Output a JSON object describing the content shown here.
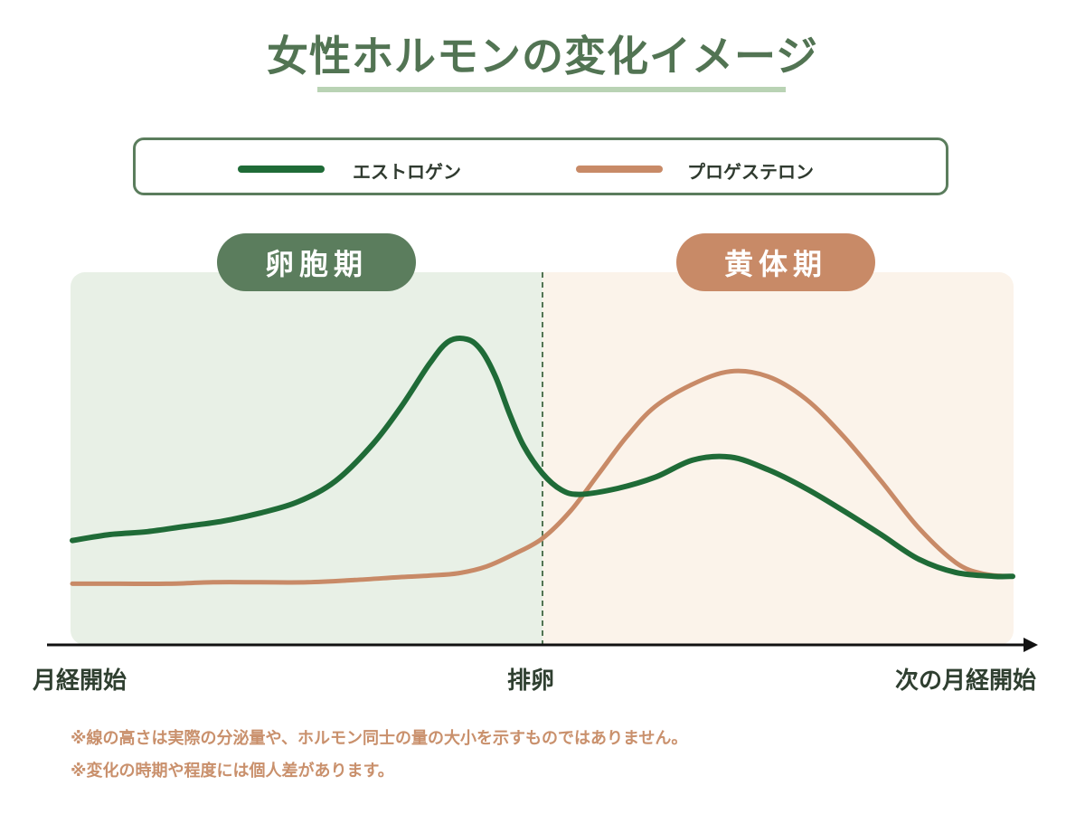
{
  "title": "女性ホルモンの変化イメージ",
  "colors": {
    "title": "#527453",
    "estrogen": "#1f6b37",
    "progesterone": "#c88a67",
    "follicular_bg": "#e8f0e6",
    "luteal_bg": "#fbf3ea",
    "follicular_pill": "#5b7d5d",
    "luteal_pill": "#c88a67",
    "note": "#c9906c"
  },
  "legend": {
    "estrogen_label": "エストロゲン",
    "progesterone_label": "プロゲステロン"
  },
  "phases": {
    "follicular": "卵胞期",
    "luteal": "黄体期"
  },
  "x_labels": {
    "start": "月経開始",
    "ovulation": "排卵",
    "end": "次の月経開始"
  },
  "notes": [
    "※線の高さは実際の分泌量や、ホルモン同士の量の大小を示すものではありません。",
    "※変化の時期や程度には個人差があります。"
  ],
  "chart_data": {
    "type": "line",
    "title": "女性ホルモンの変化イメージ",
    "xlabel": "",
    "ylabel": "",
    "xlim": [
      0,
      100
    ],
    "ylim": [
      0,
      100
    ],
    "x_ticks": [
      {
        "x": 0,
        "label": "月経開始"
      },
      {
        "x": 50,
        "label": "排卵"
      },
      {
        "x": 100,
        "label": "次の月経開始"
      }
    ],
    "grid": false,
    "legend": "top",
    "series": [
      {
        "name": "エストロゲン",
        "x": [
          0,
          4,
          8,
          12,
          16,
          20,
          24,
          28,
          32,
          35,
          38,
          40,
          42,
          43.5,
          45,
          46.5,
          48,
          50,
          52,
          54,
          58,
          62,
          66,
          70,
          74,
          78,
          82,
          86,
          90,
          94,
          98,
          100
        ],
        "y": [
          28,
          29.6,
          30.4,
          31.8,
          33.2,
          35.4,
          38.4,
          44,
          54,
          64,
          75.5,
          81.4,
          82,
          79,
          72,
          62,
          53.4,
          46,
          41.6,
          40.4,
          42,
          45,
          49.6,
          50.4,
          47,
          42,
          36,
          29.6,
          23,
          19.4,
          18.4,
          18.4
        ]
      },
      {
        "name": "プロゲステロン",
        "x": [
          0,
          5,
          10,
          15,
          20,
          25,
          30,
          35,
          38,
          41,
          44,
          47,
          50,
          53,
          56,
          59,
          62,
          66,
          70,
          74,
          78,
          82,
          86,
          90,
          94,
          97,
          100
        ],
        "y": [
          16.4,
          16.4,
          16.4,
          16.8,
          16.8,
          16.8,
          17.4,
          18.2,
          18.6,
          19.2,
          21,
          24.4,
          28.6,
          36,
          46,
          56,
          64,
          70,
          73.4,
          72,
          66,
          56,
          44,
          31.4,
          22,
          19,
          18.4
        ]
      }
    ]
  }
}
